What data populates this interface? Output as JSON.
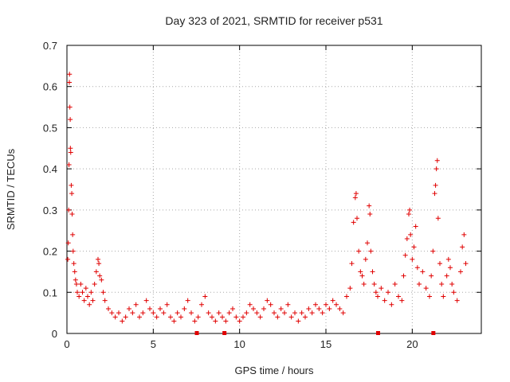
{
  "chart_data": {
    "type": "scatter",
    "title": "Day 323 of 2021, SRMTID for receiver p531",
    "xlabel": "GPS time / hours",
    "ylabel": "SRMTID / TECUs",
    "xlim": [
      0,
      24
    ],
    "ylim": [
      0,
      0.7
    ],
    "xticks": [
      0,
      5,
      10,
      15,
      20
    ],
    "yticks": [
      0,
      0.1,
      0.2,
      0.3,
      0.4,
      0.5,
      0.6,
      0.7
    ],
    "xtick_labels": [
      "0",
      "5",
      "10",
      "15",
      "20"
    ],
    "ytick_labels": [
      "0",
      "0.1",
      "0.2",
      "0.3",
      "0.4",
      "0.5",
      "0.6",
      "0.7"
    ],
    "grid": true,
    "marker": "+",
    "color": "#e00000",
    "series": [
      {
        "name": "SRMTID",
        "points": [
          [
            0.05,
            0.18
          ],
          [
            0.08,
            0.22
          ],
          [
            0.1,
            0.3
          ],
          [
            0.12,
            0.41
          ],
          [
            0.14,
            0.61
          ],
          [
            0.15,
            0.63
          ],
          [
            0.17,
            0.55
          ],
          [
            0.19,
            0.52
          ],
          [
            0.2,
            0.45
          ],
          [
            0.22,
            0.44
          ],
          [
            0.25,
            0.36
          ],
          [
            0.28,
            0.34
          ],
          [
            0.3,
            0.29
          ],
          [
            0.33,
            0.24
          ],
          [
            0.36,
            0.2
          ],
          [
            0.4,
            0.17
          ],
          [
            0.45,
            0.15
          ],
          [
            0.5,
            0.13
          ],
          [
            0.55,
            0.12
          ],
          [
            0.6,
            0.1
          ],
          [
            0.7,
            0.09
          ],
          [
            0.8,
            0.12
          ],
          [
            0.9,
            0.1
          ],
          [
            1.0,
            0.08
          ],
          [
            1.1,
            0.11
          ],
          [
            1.2,
            0.09
          ],
          [
            1.3,
            0.07
          ],
          [
            1.4,
            0.1
          ],
          [
            1.5,
            0.08
          ],
          [
            1.6,
            0.12
          ],
          [
            1.7,
            0.15
          ],
          [
            1.8,
            0.18
          ],
          [
            1.85,
            0.17
          ],
          [
            1.9,
            0.14
          ],
          [
            2.0,
            0.13
          ],
          [
            2.1,
            0.1
          ],
          [
            2.2,
            0.08
          ],
          [
            2.4,
            0.06
          ],
          [
            2.6,
            0.05
          ],
          [
            2.8,
            0.04
          ],
          [
            3.0,
            0.05
          ],
          [
            3.2,
            0.03
          ],
          [
            3.4,
            0.04
          ],
          [
            3.6,
            0.06
          ],
          [
            3.8,
            0.05
          ],
          [
            4.0,
            0.07
          ],
          [
            4.2,
            0.04
          ],
          [
            4.4,
            0.05
          ],
          [
            4.6,
            0.08
          ],
          [
            4.8,
            0.06
          ],
          [
            5.0,
            0.05
          ],
          [
            5.2,
            0.04
          ],
          [
            5.4,
            0.06
          ],
          [
            5.6,
            0.05
          ],
          [
            5.8,
            0.07
          ],
          [
            6.0,
            0.04
          ],
          [
            6.2,
            0.03
          ],
          [
            6.4,
            0.05
          ],
          [
            6.6,
            0.04
          ],
          [
            6.8,
            0.06
          ],
          [
            7.0,
            0.08
          ],
          [
            7.2,
            0.05
          ],
          [
            7.4,
            0.03
          ],
          [
            7.6,
            0.04
          ],
          [
            7.8,
            0.07
          ],
          [
            8.0,
            0.09
          ],
          [
            8.2,
            0.05
          ],
          [
            8.4,
            0.04
          ],
          [
            8.6,
            0.03
          ],
          [
            8.8,
            0.05
          ],
          [
            9.0,
            0.04
          ],
          [
            9.2,
            0.03
          ],
          [
            9.4,
            0.05
          ],
          [
            9.6,
            0.06
          ],
          [
            9.8,
            0.04
          ],
          [
            10.0,
            0.03
          ],
          [
            10.2,
            0.04
          ],
          [
            10.4,
            0.05
          ],
          [
            10.6,
            0.07
          ],
          [
            10.8,
            0.06
          ],
          [
            11.0,
            0.05
          ],
          [
            11.2,
            0.04
          ],
          [
            11.4,
            0.06
          ],
          [
            11.6,
            0.08
          ],
          [
            11.8,
            0.07
          ],
          [
            12.0,
            0.05
          ],
          [
            12.2,
            0.04
          ],
          [
            12.4,
            0.06
          ],
          [
            12.6,
            0.05
          ],
          [
            12.8,
            0.07
          ],
          [
            13.0,
            0.04
          ],
          [
            13.2,
            0.05
          ],
          [
            13.4,
            0.03
          ],
          [
            13.6,
            0.05
          ],
          [
            13.8,
            0.04
          ],
          [
            14.0,
            0.06
          ],
          [
            14.2,
            0.05
          ],
          [
            14.4,
            0.07
          ],
          [
            14.6,
            0.06
          ],
          [
            14.8,
            0.05
          ],
          [
            15.0,
            0.07
          ],
          [
            15.2,
            0.06
          ],
          [
            15.4,
            0.08
          ],
          [
            15.6,
            0.07
          ],
          [
            15.8,
            0.06
          ],
          [
            16.0,
            0.05
          ],
          [
            16.2,
            0.09
          ],
          [
            16.4,
            0.11
          ],
          [
            16.5,
            0.17
          ],
          [
            16.6,
            0.27
          ],
          [
            16.7,
            0.33
          ],
          [
            16.75,
            0.34
          ],
          [
            16.8,
            0.28
          ],
          [
            16.9,
            0.2
          ],
          [
            17.0,
            0.15
          ],
          [
            17.1,
            0.14
          ],
          [
            17.2,
            0.12
          ],
          [
            17.3,
            0.18
          ],
          [
            17.4,
            0.22
          ],
          [
            17.5,
            0.31
          ],
          [
            17.55,
            0.29
          ],
          [
            17.6,
            0.2
          ],
          [
            17.7,
            0.15
          ],
          [
            17.8,
            0.12
          ],
          [
            17.9,
            0.1
          ],
          [
            18.0,
            0.09
          ],
          [
            18.2,
            0.11
          ],
          [
            18.4,
            0.08
          ],
          [
            18.6,
            0.1
          ],
          [
            18.8,
            0.07
          ],
          [
            19.0,
            0.12
          ],
          [
            19.2,
            0.09
          ],
          [
            19.4,
            0.08
          ],
          [
            19.5,
            0.14
          ],
          [
            19.6,
            0.19
          ],
          [
            19.7,
            0.23
          ],
          [
            19.8,
            0.29
          ],
          [
            19.85,
            0.3
          ],
          [
            19.9,
            0.24
          ],
          [
            20.0,
            0.18
          ],
          [
            20.1,
            0.21
          ],
          [
            20.2,
            0.26
          ],
          [
            20.3,
            0.16
          ],
          [
            20.4,
            0.12
          ],
          [
            20.6,
            0.15
          ],
          [
            20.8,
            0.11
          ],
          [
            21.0,
            0.09
          ],
          [
            21.1,
            0.14
          ],
          [
            21.2,
            0.2
          ],
          [
            21.3,
            0.34
          ],
          [
            21.35,
            0.36
          ],
          [
            21.4,
            0.4
          ],
          [
            21.45,
            0.42
          ],
          [
            21.5,
            0.28
          ],
          [
            21.6,
            0.17
          ],
          [
            21.7,
            0.12
          ],
          [
            21.8,
            0.09
          ],
          [
            22.0,
            0.14
          ],
          [
            22.1,
            0.18
          ],
          [
            22.2,
            0.16
          ],
          [
            22.3,
            0.12
          ],
          [
            22.4,
            0.1
          ],
          [
            22.6,
            0.08
          ],
          [
            22.8,
            0.15
          ],
          [
            22.9,
            0.21
          ],
          [
            23.0,
            0.24
          ],
          [
            23.1,
            0.17
          ]
        ]
      }
    ],
    "data_gaps_x": [
      7.5,
      9.1,
      18.0,
      21.2
    ],
    "gap_color": "#e00000"
  }
}
